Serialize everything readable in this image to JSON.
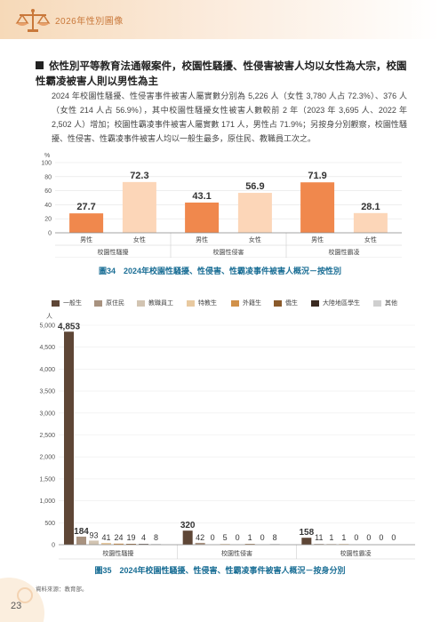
{
  "header": {
    "title": "2026年性別圖像"
  },
  "section": {
    "heading": "依性別平等教育法通報案件，校園性騷擾、性侵害被害人均以女性為大宗，校園性霸凌被害人則以男性為主",
    "paragraph": "2024 年校園性騷擾、性侵害事件被害人屬實數分別為 5,226 人（女性 3,780 人占 72.3%）、376 人（女性 214 人占 56.9%），其中校園性騷擾女性被害人數較前 2 年（2023 年 3,695 人、2022 年 2,502 人）增加；校園性霸凌事件被害人屬實數 171 人，男性占 71.9%；另按身分別觀察，校園性騷擾、性侵害、性霸凌事件被害人均以一般生最多，原住民、教職員工次之。"
  },
  "colors": {
    "male": "#f0884d",
    "female": "#fcd6b8",
    "caption": "#1a6e95"
  },
  "chart_data": [
    {
      "type": "bar",
      "ylabel": "%",
      "ylim": [
        0,
        100
      ],
      "yticks": [
        "0",
        "20",
        "40",
        "60",
        "80",
        "100"
      ],
      "groups": [
        "校園性騷擾",
        "校園性侵害",
        "校園性霸凌"
      ],
      "categories": [
        "男性",
        "女性"
      ],
      "values": [
        [
          27.7,
          72.3
        ],
        [
          43.1,
          56.9
        ],
        [
          71.9,
          28.1
        ]
      ],
      "value_labels": [
        [
          "27.7",
          "72.3"
        ],
        [
          "43.1",
          "56.9"
        ],
        [
          "71.9",
          "28.1"
        ]
      ],
      "caption": "圖34　2024年校園性騷擾、性侵害、性霸凌事件被害人概況－按性別"
    },
    {
      "type": "bar",
      "ylabel": "人",
      "ylim": [
        0,
        5000
      ],
      "yticks": [
        "0",
        "500",
        "1,000",
        "1,500",
        "2,000",
        "2,500",
        "3,000",
        "3,500",
        "4,000",
        "4,500",
        "5,000"
      ],
      "groups": [
        "校園性騷擾",
        "校園性侵害",
        "校園性霸凌"
      ],
      "series": [
        {
          "name": "一般生",
          "color": "#5e4636"
        },
        {
          "name": "原住民",
          "color": "#a8927f"
        },
        {
          "name": "教職員工",
          "color": "#d2c4b2"
        },
        {
          "name": "特教生",
          "color": "#e8c9a0"
        },
        {
          "name": "外籍生",
          "color": "#d1914a"
        },
        {
          "name": "僑生",
          "color": "#8a5a2b"
        },
        {
          "name": "大陸地區學生",
          "color": "#3a2a20"
        },
        {
          "name": "其他",
          "color": "#cfcfcf"
        }
      ],
      "values": [
        [
          4853,
          184,
          93,
          41,
          24,
          19,
          4,
          8
        ],
        [
          320,
          42,
          0,
          5,
          0,
          1,
          0,
          8
        ],
        [
          158,
          11,
          1,
          1,
          0,
          0,
          0,
          0
        ]
      ],
      "value_labels": [
        [
          "4,853",
          "184",
          "93",
          "41",
          "24",
          "19",
          "4",
          "8"
        ],
        [
          "320",
          "42",
          "0",
          "5",
          "0",
          "1",
          "0",
          "8"
        ],
        [
          "158",
          "11",
          "1",
          "1",
          "0",
          "0",
          "0",
          "0"
        ]
      ],
      "caption": "圖35　2024年校園性騷擾、性侵害、性霸凌事件被害人概況－按身分別"
    }
  ],
  "footer": {
    "source": "資料來源：教育部。",
    "page": "23"
  }
}
